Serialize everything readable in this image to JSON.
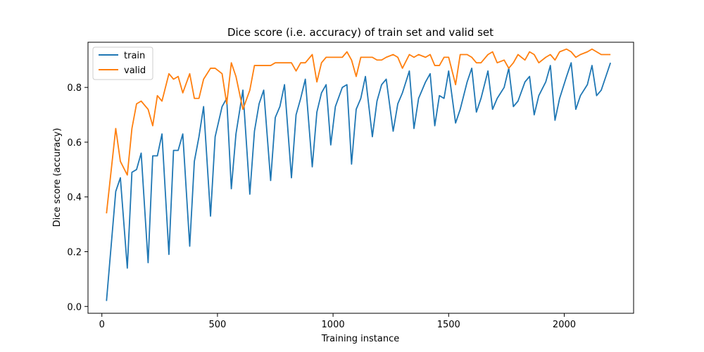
{
  "chart_data": {
    "type": "line",
    "title": "Dice score (i.e. accuracy) of train set and valid set",
    "xlabel": "Training instance",
    "ylabel": "Dice score (accuracy)",
    "xlim": [
      -60,
      2300
    ],
    "ylim": [
      -0.025,
      0.965
    ],
    "xticks": [
      0,
      500,
      1000,
      1500,
      2000
    ],
    "yticks": [
      0.0,
      0.2,
      0.4,
      0.6,
      0.8
    ],
    "ytick_labels": [
      "0.0",
      "0.2",
      "0.4",
      "0.6",
      "0.8"
    ],
    "legend_position": "top-left",
    "grid": false,
    "series": [
      {
        "name": "train",
        "color": "#1f77b4",
        "points": [
          [
            20,
            0.02
          ],
          [
            60,
            0.42
          ],
          [
            80,
            0.47
          ],
          [
            110,
            0.14
          ],
          [
            130,
            0.49
          ],
          [
            150,
            0.5
          ],
          [
            170,
            0.56
          ],
          [
            200,
            0.16
          ],
          [
            220,
            0.55
          ],
          [
            240,
            0.55
          ],
          [
            260,
            0.63
          ],
          [
            290,
            0.19
          ],
          [
            310,
            0.57
          ],
          [
            330,
            0.57
          ],
          [
            350,
            0.63
          ],
          [
            380,
            0.22
          ],
          [
            400,
            0.53
          ],
          [
            420,
            0.62
          ],
          [
            440,
            0.73
          ],
          [
            470,
            0.33
          ],
          [
            490,
            0.62
          ],
          [
            520,
            0.73
          ],
          [
            540,
            0.76
          ],
          [
            560,
            0.43
          ],
          [
            580,
            0.63
          ],
          [
            610,
            0.79
          ],
          [
            640,
            0.41
          ],
          [
            660,
            0.64
          ],
          [
            680,
            0.74
          ],
          [
            700,
            0.79
          ],
          [
            730,
            0.46
          ],
          [
            750,
            0.69
          ],
          [
            770,
            0.73
          ],
          [
            790,
            0.81
          ],
          [
            820,
            0.47
          ],
          [
            840,
            0.7
          ],
          [
            860,
            0.76
          ],
          [
            880,
            0.83
          ],
          [
            910,
            0.51
          ],
          [
            930,
            0.71
          ],
          [
            950,
            0.78
          ],
          [
            970,
            0.81
          ],
          [
            990,
            0.59
          ],
          [
            1010,
            0.73
          ],
          [
            1040,
            0.8
          ],
          [
            1060,
            0.81
          ],
          [
            1080,
            0.52
          ],
          [
            1100,
            0.72
          ],
          [
            1120,
            0.76
          ],
          [
            1140,
            0.84
          ],
          [
            1170,
            0.62
          ],
          [
            1190,
            0.75
          ],
          [
            1210,
            0.81
          ],
          [
            1230,
            0.83
          ],
          [
            1260,
            0.64
          ],
          [
            1280,
            0.74
          ],
          [
            1300,
            0.78
          ],
          [
            1330,
            0.86
          ],
          [
            1350,
            0.65
          ],
          [
            1370,
            0.76
          ],
          [
            1400,
            0.82
          ],
          [
            1420,
            0.85
          ],
          [
            1440,
            0.66
          ],
          [
            1460,
            0.77
          ],
          [
            1480,
            0.76
          ],
          [
            1500,
            0.86
          ],
          [
            1530,
            0.67
          ],
          [
            1550,
            0.72
          ],
          [
            1580,
            0.82
          ],
          [
            1600,
            0.87
          ],
          [
            1620,
            0.71
          ],
          [
            1640,
            0.76
          ],
          [
            1670,
            0.86
          ],
          [
            1690,
            0.72
          ],
          [
            1710,
            0.76
          ],
          [
            1740,
            0.8
          ],
          [
            1760,
            0.87
          ],
          [
            1780,
            0.73
          ],
          [
            1800,
            0.75
          ],
          [
            1830,
            0.82
          ],
          [
            1850,
            0.84
          ],
          [
            1870,
            0.7
          ],
          [
            1890,
            0.77
          ],
          [
            1920,
            0.82
          ],
          [
            1940,
            0.88
          ],
          [
            1960,
            0.68
          ],
          [
            1980,
            0.76
          ],
          [
            2010,
            0.84
          ],
          [
            2030,
            0.89
          ],
          [
            2050,
            0.72
          ],
          [
            2070,
            0.77
          ],
          [
            2100,
            0.81
          ],
          [
            2120,
            0.88
          ],
          [
            2140,
            0.77
          ],
          [
            2160,
            0.79
          ],
          [
            2180,
            0.84
          ],
          [
            2200,
            0.89
          ]
        ]
      },
      {
        "name": "valid",
        "color": "#ff7f0e",
        "points": [
          [
            20,
            0.34
          ],
          [
            60,
            0.65
          ],
          [
            80,
            0.53
          ],
          [
            110,
            0.48
          ],
          [
            130,
            0.65
          ],
          [
            150,
            0.74
          ],
          [
            170,
            0.75
          ],
          [
            200,
            0.72
          ],
          [
            220,
            0.66
          ],
          [
            240,
            0.77
          ],
          [
            260,
            0.75
          ],
          [
            290,
            0.85
          ],
          [
            310,
            0.83
          ],
          [
            330,
            0.84
          ],
          [
            350,
            0.78
          ],
          [
            380,
            0.85
          ],
          [
            400,
            0.76
          ],
          [
            420,
            0.76
          ],
          [
            440,
            0.83
          ],
          [
            470,
            0.87
          ],
          [
            490,
            0.87
          ],
          [
            520,
            0.85
          ],
          [
            540,
            0.74
          ],
          [
            560,
            0.89
          ],
          [
            580,
            0.84
          ],
          [
            610,
            0.72
          ],
          [
            640,
            0.79
          ],
          [
            660,
            0.88
          ],
          [
            680,
            0.88
          ],
          [
            700,
            0.88
          ],
          [
            730,
            0.88
          ],
          [
            750,
            0.89
          ],
          [
            770,
            0.89
          ],
          [
            790,
            0.89
          ],
          [
            820,
            0.89
          ],
          [
            840,
            0.86
          ],
          [
            860,
            0.89
          ],
          [
            880,
            0.89
          ],
          [
            910,
            0.92
          ],
          [
            930,
            0.82
          ],
          [
            950,
            0.89
          ],
          [
            970,
            0.91
          ],
          [
            990,
            0.91
          ],
          [
            1010,
            0.91
          ],
          [
            1040,
            0.91
          ],
          [
            1060,
            0.93
          ],
          [
            1080,
            0.9
          ],
          [
            1100,
            0.84
          ],
          [
            1120,
            0.91
          ],
          [
            1140,
            0.91
          ],
          [
            1170,
            0.91
          ],
          [
            1190,
            0.9
          ],
          [
            1210,
            0.9
          ],
          [
            1230,
            0.91
          ],
          [
            1260,
            0.92
          ],
          [
            1280,
            0.91
          ],
          [
            1300,
            0.87
          ],
          [
            1330,
            0.92
          ],
          [
            1350,
            0.91
          ],
          [
            1370,
            0.92
          ],
          [
            1400,
            0.91
          ],
          [
            1420,
            0.92
          ],
          [
            1440,
            0.88
          ],
          [
            1460,
            0.88
          ],
          [
            1480,
            0.91
          ],
          [
            1500,
            0.91
          ],
          [
            1530,
            0.81
          ],
          [
            1550,
            0.92
          ],
          [
            1580,
            0.92
          ],
          [
            1600,
            0.91
          ],
          [
            1620,
            0.89
          ],
          [
            1640,
            0.89
          ],
          [
            1670,
            0.92
          ],
          [
            1690,
            0.93
          ],
          [
            1710,
            0.89
          ],
          [
            1740,
            0.9
          ],
          [
            1760,
            0.87
          ],
          [
            1780,
            0.89
          ],
          [
            1800,
            0.92
          ],
          [
            1830,
            0.9
          ],
          [
            1850,
            0.93
          ],
          [
            1870,
            0.92
          ],
          [
            1890,
            0.89
          ],
          [
            1920,
            0.91
          ],
          [
            1940,
            0.92
          ],
          [
            1960,
            0.9
          ],
          [
            1980,
            0.93
          ],
          [
            2010,
            0.94
          ],
          [
            2030,
            0.93
          ],
          [
            2050,
            0.91
          ],
          [
            2070,
            0.92
          ],
          [
            2100,
            0.93
          ],
          [
            2120,
            0.94
          ],
          [
            2140,
            0.93
          ],
          [
            2160,
            0.92
          ],
          [
            2180,
            0.92
          ],
          [
            2200,
            0.92
          ]
        ]
      }
    ]
  }
}
